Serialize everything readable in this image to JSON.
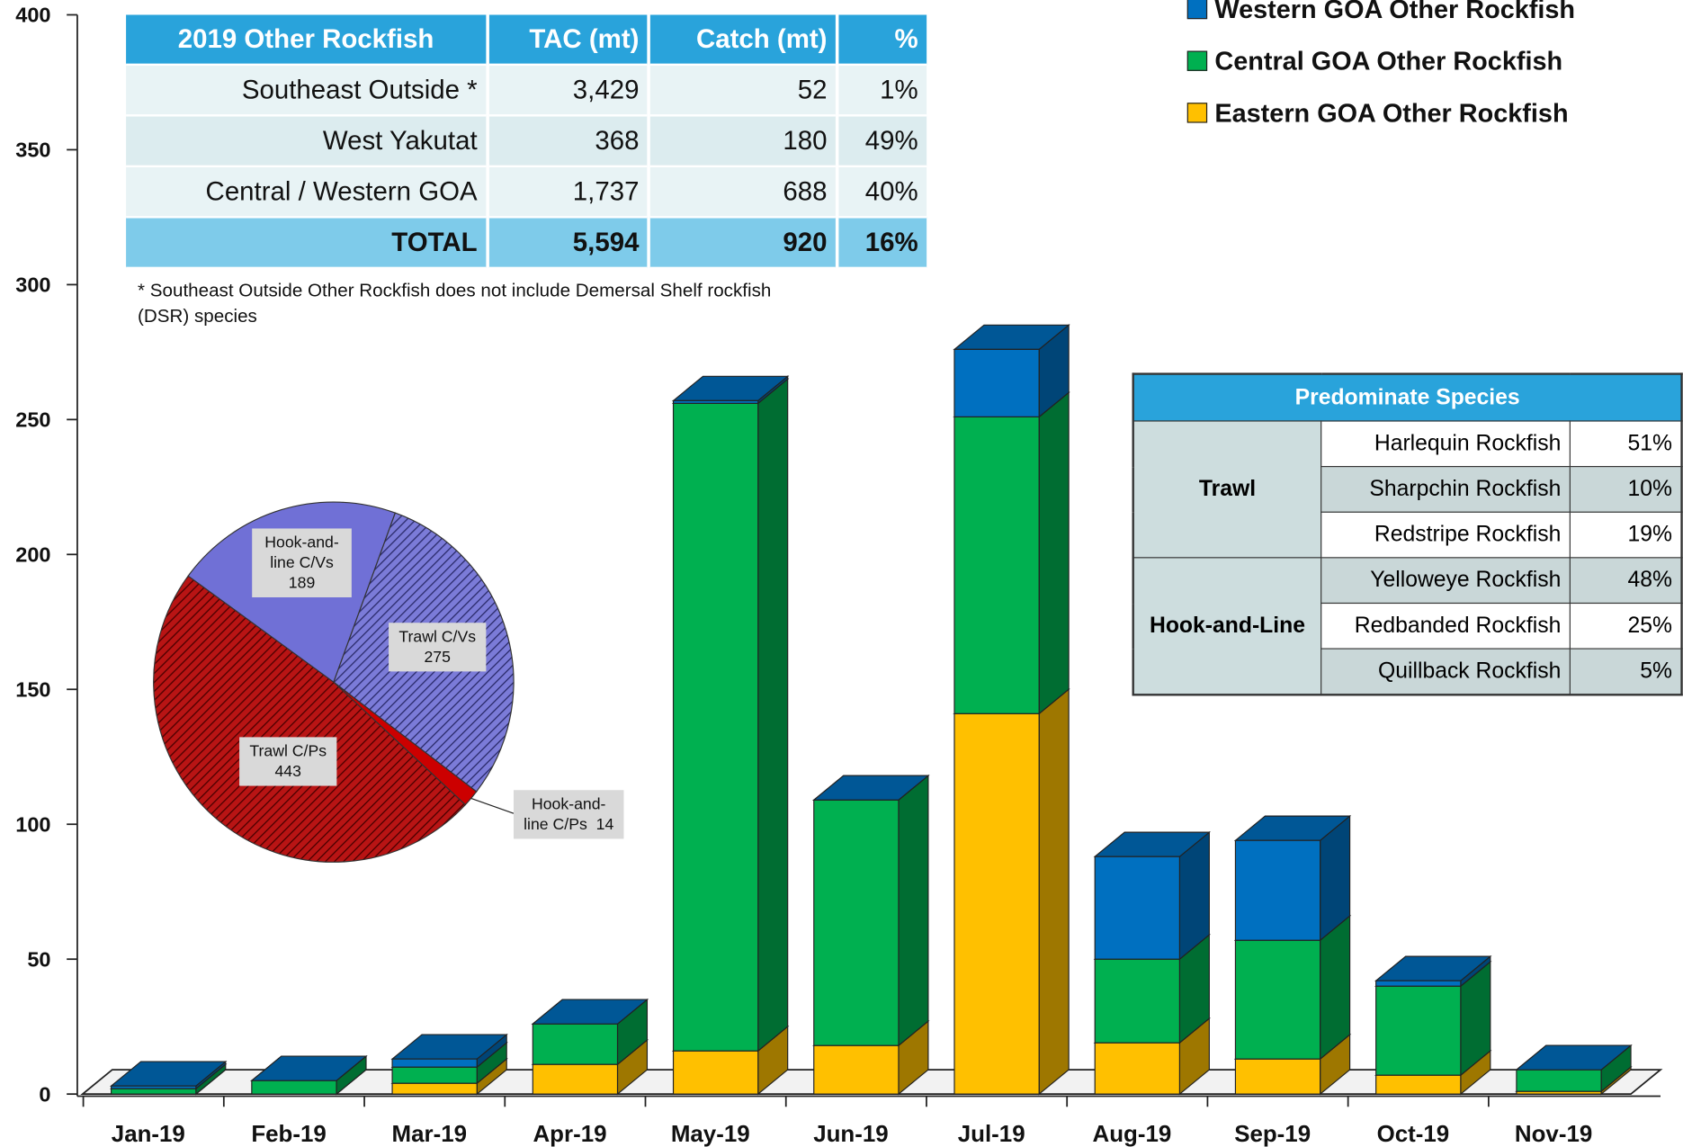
{
  "chart_data": [
    {
      "type": "bar3d-stacked",
      "categories": [
        "Jan-19",
        "Feb-19",
        "Mar-19",
        "Apr-19",
        "May-19",
        "Jun-19",
        "Jul-19",
        "Aug-19",
        "Sep-19",
        "Oct-19",
        "Nov-19"
      ],
      "series": [
        {
          "name": "Eastern GOA Other Rockfish",
          "color": "#ffc000",
          "values": [
            0,
            0,
            4,
            11,
            16,
            18,
            141,
            19,
            13,
            7,
            1
          ]
        },
        {
          "name": "Central GOA Other Rockfish",
          "color": "#00b050",
          "values": [
            2,
            5,
            6,
            15,
            240,
            91,
            110,
            31,
            44,
            33,
            8
          ]
        },
        {
          "name": "Western GOA Other Rockfish",
          "color": "#0070c0",
          "values": [
            1,
            0,
            3,
            0,
            1,
            0,
            25,
            38,
            37,
            2,
            0
          ]
        }
      ],
      "ylim": [
        0,
        400
      ],
      "yticks": [
        0,
        50,
        100,
        150,
        200,
        250,
        300,
        350,
        400
      ]
    },
    {
      "type": "pie",
      "categories": [
        "Trawl C/Vs",
        "Hook-and-line C/Ps",
        "Trawl C/Ps",
        "Hook-and-line C/Vs"
      ],
      "values": [
        275,
        14,
        443,
        189
      ],
      "colors": [
        "#7b7bd8",
        "#cc0000",
        "#b81414",
        "#7070d6"
      ]
    }
  ],
  "catch_table": {
    "header": [
      "2019 Other Rockfish",
      "TAC (mt)",
      "Catch (mt)",
      "%"
    ],
    "rows": [
      [
        "Southeast Outside *",
        "3,429",
        "52",
        "1%"
      ],
      [
        "West Yakutat",
        "368",
        "180",
        "49%"
      ],
      [
        "Central / Western GOA",
        "1,737",
        "688",
        "40%"
      ]
    ],
    "total": [
      "TOTAL",
      "5,594",
      "920",
      "16%"
    ],
    "footnote": "* Southeast Outside Other Rockfish does not include Demersal Shelf rockfish (DSR) species"
  },
  "species_table": {
    "title": "Predominate Species",
    "groups": [
      {
        "name": "Trawl",
        "rows": [
          [
            "Harlequin Rockfish",
            "51%"
          ],
          [
            "Sharpchin Rockfish",
            "10%"
          ],
          [
            "Redstripe Rockfish",
            "19%"
          ]
        ]
      },
      {
        "name": "Hook-and-Line",
        "rows": [
          [
            "Yelloweye Rockfish",
            "48%"
          ],
          [
            "Redbanded Rockfish",
            "25%"
          ],
          [
            "Quillback Rockfish",
            "5%"
          ]
        ]
      }
    ]
  }
}
